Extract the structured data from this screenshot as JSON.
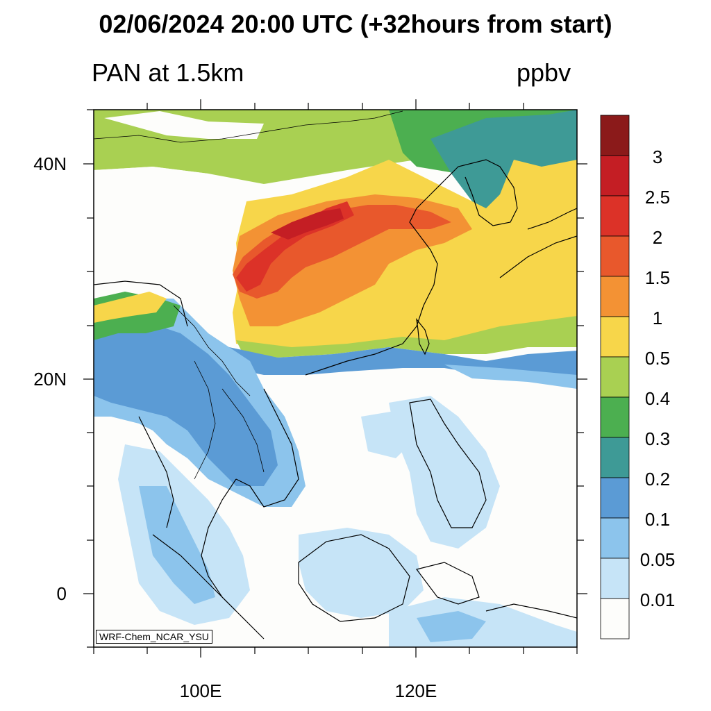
{
  "header": {
    "title": "02/06/2024 20:00 UTC (+32hours from start)",
    "left_subtitle": "PAN at 1.5km",
    "right_subtitle": "ppbv"
  },
  "axes": {
    "y_labels": [
      "40N",
      "20N",
      "0"
    ],
    "x_labels": [
      "100E",
      "120E"
    ]
  },
  "colorbar": {
    "levels": [
      "3",
      "2.5",
      "2",
      "1.5",
      "1",
      "0.5",
      "0.4",
      "0.3",
      "0.2",
      "0.1",
      "0.05",
      "0.01"
    ],
    "colors": [
      "#8b1a1a",
      "#c41e24",
      "#dc3228",
      "#e8582c",
      "#f39234",
      "#f7d64a",
      "#a9d052",
      "#4caf50",
      "#3e9a96",
      "#5b9bd5",
      "#8cc4ec",
      "#c6e4f7",
      "#fdfdfb"
    ]
  },
  "credit": "WRF-Chem_NCAR_YSU"
}
